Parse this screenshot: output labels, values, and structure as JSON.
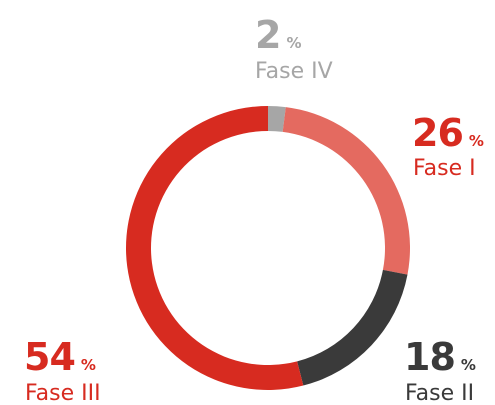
{
  "chart_data": {
    "type": "donut",
    "categories": [
      "Fase IV",
      "Fase I",
      "Fase II",
      "Fase III"
    ],
    "values": [
      2,
      26,
      18,
      54
    ],
    "unit": "%",
    "colors": [
      "#a6a6a6",
      "#e46a60",
      "#3a3a3a",
      "#d72b20"
    ],
    "label_colors": [
      "#a6a6a6",
      "#d72b20",
      "#3a3a3a",
      "#d72b20"
    ]
  }
}
